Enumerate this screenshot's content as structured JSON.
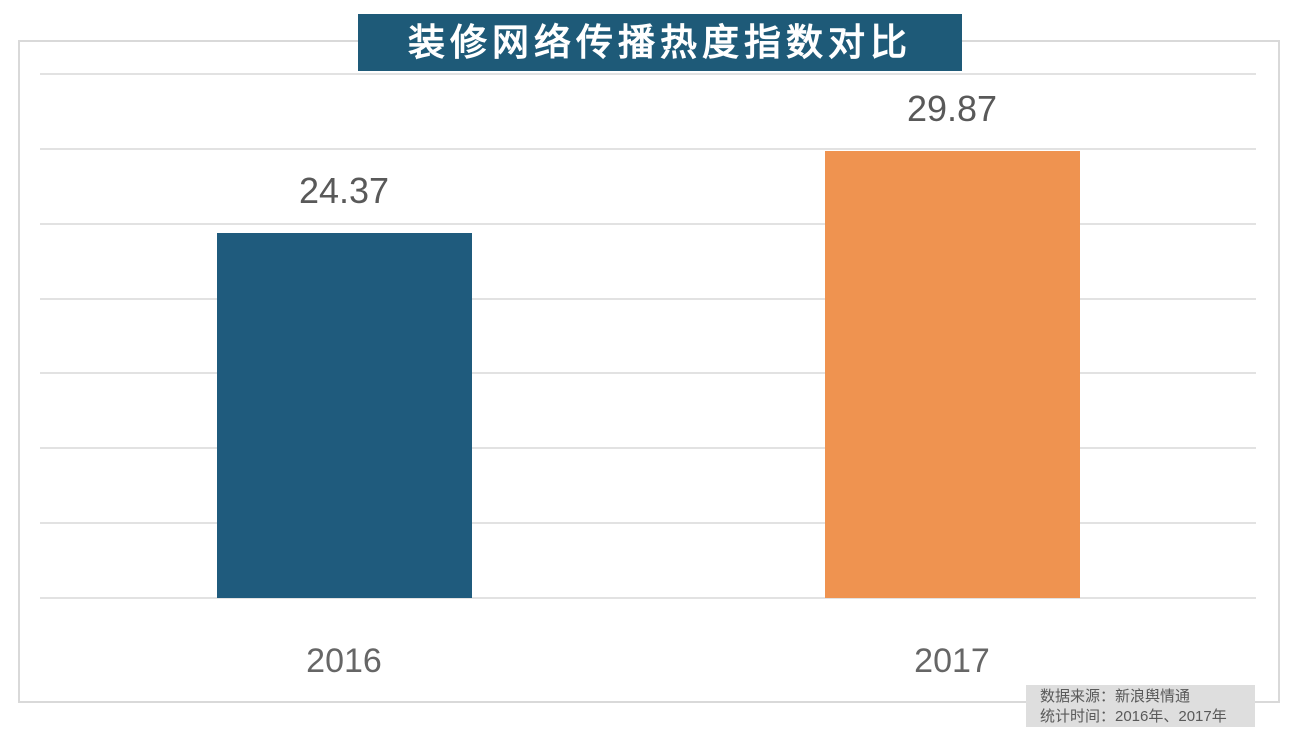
{
  "title": "装修网络传播热度指数对比",
  "source_note": {
    "line1": "数据来源：新浪舆情通",
    "line2": "统计时间：2016年、2017年"
  },
  "colors": {
    "title_bg": "#1e5a78",
    "title_text": "#ffffff",
    "bar_2016": "#1f5b7d",
    "bar_2017": "#ef9350",
    "grid": "#e2e2e2",
    "border": "#d9d9d9",
    "label_text": "#595959",
    "axis_text": "#666666",
    "note_bg": "#dedede",
    "note_text": "#595959"
  },
  "chart_data": {
    "type": "bar",
    "title": "装修网络传播热度指数对比",
    "categories": [
      "2016",
      "2017"
    ],
    "values": [
      24.37,
      29.87
    ],
    "value_labels": [
      "24.37",
      "29.87"
    ],
    "series_colors": [
      "#1f5b7d",
      "#ef9350"
    ],
    "xlabel": "",
    "ylabel": "",
    "ylim": [
      0,
      35
    ],
    "grid_step": 5,
    "grid": true,
    "legend": "none",
    "y_tick_labels_visible": false
  }
}
